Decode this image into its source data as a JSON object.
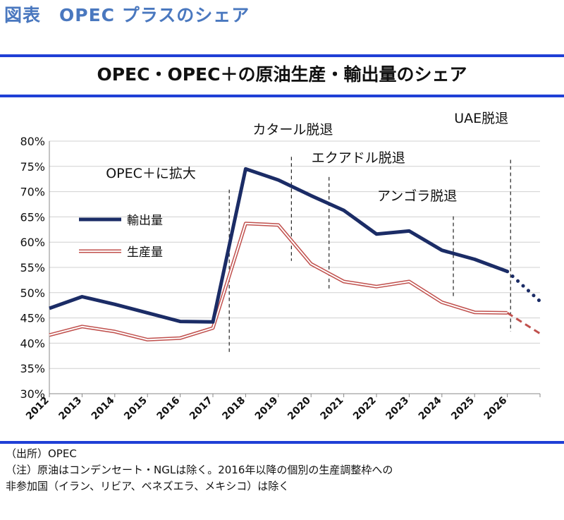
{
  "figure_title": "図表　OPEC プラスのシェア",
  "chart_data": {
    "type": "line",
    "title": "OPEC・OPEC＋の原油生産・輸出量のシェア",
    "categories": [
      "2012",
      "2013",
      "2014",
      "2015",
      "2016",
      "2017",
      "2018",
      "2019",
      "2020",
      "2021",
      "2022",
      "2023",
      "2024",
      "2025",
      "2026"
    ],
    "x_extra_end": 2027,
    "ylim": [
      30,
      80
    ],
    "yticks": [
      "30%",
      "35%",
      "40%",
      "45%",
      "50%",
      "55%",
      "60%",
      "65%",
      "70%",
      "75%",
      "80%"
    ],
    "ytick_values": [
      30,
      35,
      40,
      45,
      50,
      55,
      60,
      65,
      70,
      75,
      80
    ],
    "grid": true,
    "legend_position": "left",
    "series": [
      {
        "name": "輸出量",
        "color": "#1b2c66",
        "values": [
          46.9,
          49.2,
          47.7,
          46.0,
          44.3,
          44.2,
          74.5,
          72.3,
          69.2,
          66.3,
          61.6,
          62.2,
          58.4,
          56.6,
          54.2
        ],
        "projection": {
          "x": [
            2026,
            2027
          ],
          "values": [
            54.2,
            48.3
          ]
        }
      },
      {
        "name": "生産量",
        "color": "#c0504d",
        "values": [
          41.6,
          43.3,
          42.3,
          40.7,
          41.0,
          43.0,
          63.7,
          63.4,
          55.7,
          52.2,
          51.2,
          52.2,
          48.1,
          46.1,
          46.0
        ],
        "projection": {
          "x": [
            2026,
            2027
          ],
          "values": [
            46.0,
            41.9
          ]
        }
      }
    ],
    "annotations": [
      {
        "label": "OPEC＋に拡大",
        "x": 2017.5,
        "line_top": 70.4,
        "line_bottom": 38.0
      },
      {
        "label": "カタール脱退",
        "x": 2019.4,
        "line_top": 76.9,
        "line_bottom": 56.3
      },
      {
        "label": "エクアドル脱退",
        "x": 2020.55,
        "line_top": 72.9,
        "line_bottom": 50.3
      },
      {
        "label": "アンゴラ脱退",
        "x": 2024.35,
        "line_top": 65.1,
        "line_bottom": 49.3
      },
      {
        "label": "UAE脱退",
        "x": 2026.1,
        "line_top": 76.3,
        "line_bottom": 42.3
      }
    ]
  },
  "notes": [
    "（出所）OPEC",
    "（注）原油はコンデンセート・NGLは除く。2016年以降の個別の生産調整枠への",
    "非参加国（イラン、リビア、ベネズエラ、メキシコ）は除く"
  ],
  "colors": {
    "accent_title": "#4a78bf",
    "rule": "#1f3fd6"
  }
}
